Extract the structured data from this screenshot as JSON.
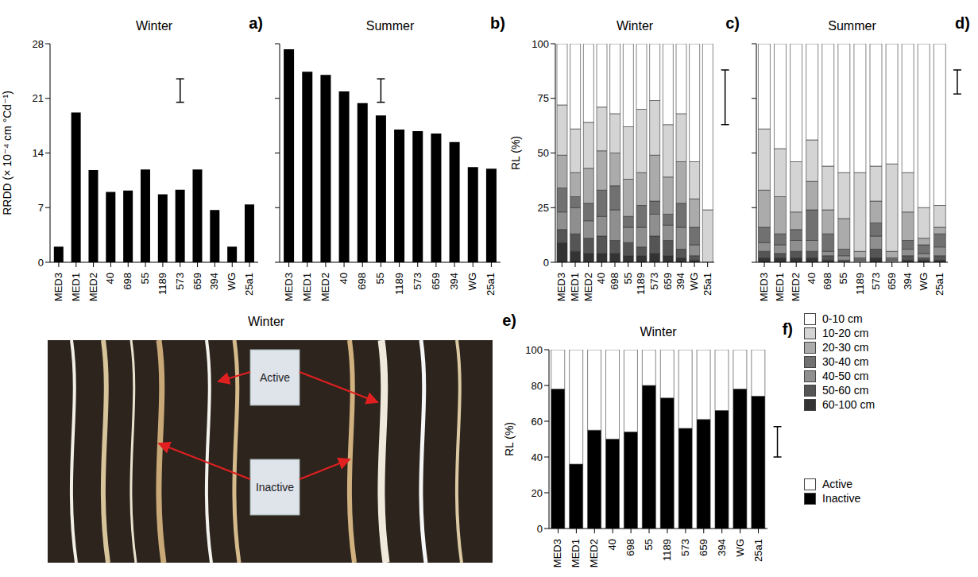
{
  "chart_data": [
    {
      "type": "bar",
      "panel_label": "a)",
      "title": "Winter",
      "y_label": "RRDD (× 10⁻⁴ cm °Cd⁻¹)",
      "categories": [
        "MED3",
        "MED1",
        "MED2",
        "40",
        "698",
        "55",
        "1189",
        "573",
        "659",
        "394",
        "WG",
        "25a1"
      ],
      "values": [
        2,
        19.2,
        11.8,
        9,
        9.2,
        11.9,
        8.7,
        9.3,
        11.9,
        6.7,
        2,
        7.4
      ],
      "color": "#000000",
      "ylim": [
        0,
        28
      ],
      "yticks": [
        0,
        7,
        14,
        21,
        28
      ],
      "error_bar": [
        20.5,
        23.5
      ],
      "grid": false
    },
    {
      "type": "bar",
      "panel_label": "b)",
      "title": "Summer",
      "categories": [
        "MED3",
        "MED1",
        "MED2",
        "40",
        "698",
        "55",
        "1189",
        "573",
        "659",
        "394",
        "WG",
        "25a1"
      ],
      "values": [
        27.3,
        24.4,
        24,
        21.9,
        20.4,
        18.8,
        17,
        16.8,
        16.5,
        15.4,
        12.2,
        12
      ],
      "color": "#000000",
      "ylim": [
        0,
        28
      ],
      "yticks": [
        0,
        7,
        14,
        21,
        28
      ],
      "error_bar": [
        20.5,
        23.5
      ],
      "grid": false,
      "tick_labels": "x"
    },
    {
      "type": "bar",
      "panel_label": "c)",
      "title": "Winter",
      "y_label": "RL (%)",
      "stacked": true,
      "legend": "right",
      "categories": [
        "MED3",
        "MED1",
        "MED2",
        "40",
        "698",
        "55",
        "1189",
        "573",
        "659",
        "394",
        "WG",
        "25a1"
      ],
      "series": [
        {
          "name": "0-10 cm",
          "color": "#ffffff",
          "values": [
            28,
            39,
            36,
            29,
            32,
            38,
            30,
            26,
            37,
            32,
            54,
            76
          ]
        },
        {
          "name": "10-20 cm",
          "color": "#d4d4d4",
          "values": [
            23,
            20,
            21,
            20,
            18,
            24,
            29,
            25,
            24,
            22,
            17,
            24
          ]
        },
        {
          "name": "20-30 cm",
          "color": "#ababab",
          "values": [
            15,
            11,
            16,
            18,
            15,
            17,
            15,
            21,
            17,
            19,
            13,
            0
          ]
        },
        {
          "name": "30-40 cm",
          "color": "#717171",
          "values": [
            11,
            5,
            8,
            12,
            11,
            5,
            10,
            6,
            5,
            11,
            8,
            0
          ]
        },
        {
          "name": "40-50 cm",
          "color": "#8f8f8f",
          "values": [
            8,
            12,
            8,
            9,
            14,
            7,
            9,
            10,
            7,
            10,
            5,
            0
          ]
        },
        {
          "name": "50-60 cm",
          "color": "#555555",
          "values": [
            6,
            8,
            7,
            8,
            6,
            6,
            4,
            8,
            7,
            4,
            2,
            0
          ]
        },
        {
          "name": "60-100 cm",
          "color": "#333333",
          "values": [
            9,
            5,
            4,
            4,
            4,
            3,
            3,
            4,
            3,
            2,
            1,
            0
          ]
        }
      ],
      "ylim": [
        0,
        100
      ],
      "yticks": [
        0,
        25,
        50,
        75,
        100
      ],
      "error_bar": [
        63,
        88
      ],
      "grid": false
    },
    {
      "type": "bar",
      "panel_label": "d)",
      "title": "Summer",
      "stacked": true,
      "categories": [
        "MED3",
        "MED1",
        "MED2",
        "40",
        "698",
        "55",
        "1189",
        "573",
        "659",
        "394",
        "WG",
        "25a1"
      ],
      "series": [
        {
          "name": "0-10 cm",
          "color": "#ffffff",
          "values": [
            39,
            48,
            54,
            44,
            56,
            59,
            59,
            56,
            55,
            59,
            75,
            74
          ]
        },
        {
          "name": "10-20 cm",
          "color": "#d4d4d4",
          "values": [
            28,
            22,
            23,
            19,
            20,
            21,
            36,
            16,
            40,
            18,
            14,
            10
          ]
        },
        {
          "name": "20-30 cm",
          "color": "#ababab",
          "values": [
            17,
            17,
            8,
            13,
            11,
            14,
            3,
            10,
            3,
            13,
            3,
            3
          ]
        },
        {
          "name": "30-40 cm",
          "color": "#717171",
          "values": [
            7,
            5,
            5,
            14,
            8,
            3,
            1,
            6,
            1,
            4,
            4,
            6
          ]
        },
        {
          "name": "40-50 cm",
          "color": "#8f8f8f",
          "values": [
            4,
            4,
            5,
            5,
            2,
            2,
            1,
            6,
            1,
            3,
            2,
            4
          ]
        },
        {
          "name": "50-60 cm",
          "color": "#555555",
          "values": [
            3,
            2,
            3,
            3,
            2,
            1,
            0,
            4,
            0,
            2,
            1,
            2
          ]
        },
        {
          "name": "60-100 cm",
          "color": "#333333",
          "values": [
            2,
            2,
            2,
            2,
            1,
            0,
            0,
            2,
            0,
            1,
            1,
            1
          ]
        }
      ],
      "ylim": [
        0,
        100
      ],
      "yticks": [
        0,
        25,
        50,
        75,
        100
      ],
      "error_bar": [
        77,
        88
      ],
      "grid": false,
      "tick_labels": "x"
    },
    {
      "type": "image",
      "panel_label": "e)",
      "title": "Winter",
      "annotations": [
        "Active",
        "Inactive"
      ]
    },
    {
      "type": "bar",
      "panel_label": "f)",
      "title": "Winter",
      "y_label": "RL (%)",
      "stacked": true,
      "legend": "right",
      "categories": [
        "MED3",
        "MED1",
        "MED2",
        "40",
        "698",
        "55",
        "1189",
        "573",
        "659",
        "394",
        "WG",
        "25a1"
      ],
      "series": [
        {
          "name": "Active",
          "color": "#ffffff",
          "values": [
            22,
            64,
            45,
            50,
            46,
            20,
            27,
            44,
            39,
            34,
            22,
            26
          ]
        },
        {
          "name": "Inactive",
          "color": "#000000",
          "values": [
            78,
            36,
            55,
            50,
            54,
            80,
            73,
            56,
            61,
            66,
            78,
            74
          ]
        }
      ],
      "ylim": [
        0,
        100
      ],
      "yticks": [
        0,
        20,
        40,
        60,
        80,
        100
      ],
      "error_bar": [
        40,
        57
      ],
      "grid": false
    }
  ]
}
